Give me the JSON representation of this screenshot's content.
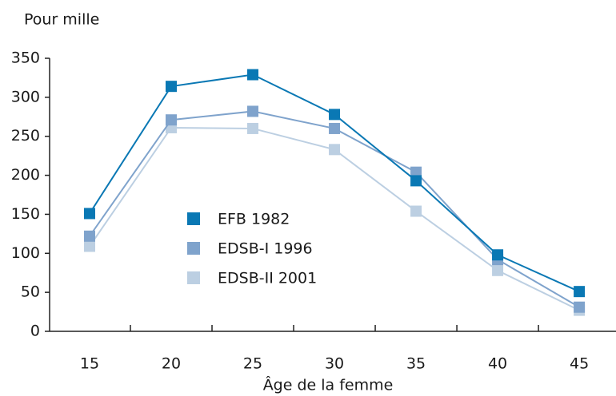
{
  "chart_data": {
    "type": "line",
    "y_label": "Pour mille",
    "x_label": "Âge de la femme",
    "x": [
      15,
      20,
      25,
      30,
      35,
      40,
      45
    ],
    "xlim": [
      12.55,
      47.25
    ],
    "xticks": [
      15,
      20,
      25,
      30,
      35,
      40,
      45
    ],
    "ylim": [
      0,
      350
    ],
    "yticks": [
      0,
      50,
      100,
      150,
      200,
      250,
      300,
      350
    ],
    "series": [
      {
        "name": "EFB 1982",
        "color": "#0a78b4",
        "values": [
          151,
          314,
          329,
          278,
          193,
          98,
          51
        ]
      },
      {
        "name": "EDSB-I 1996",
        "color": "#7fa3cc",
        "values": [
          122,
          271,
          282,
          260,
          204,
          92,
          31
        ]
      },
      {
        "name": "EDSB-II 2001",
        "color": "#bccfe2",
        "values": [
          109,
          261,
          260,
          233,
          154,
          78,
          27
        ]
      }
    ]
  }
}
